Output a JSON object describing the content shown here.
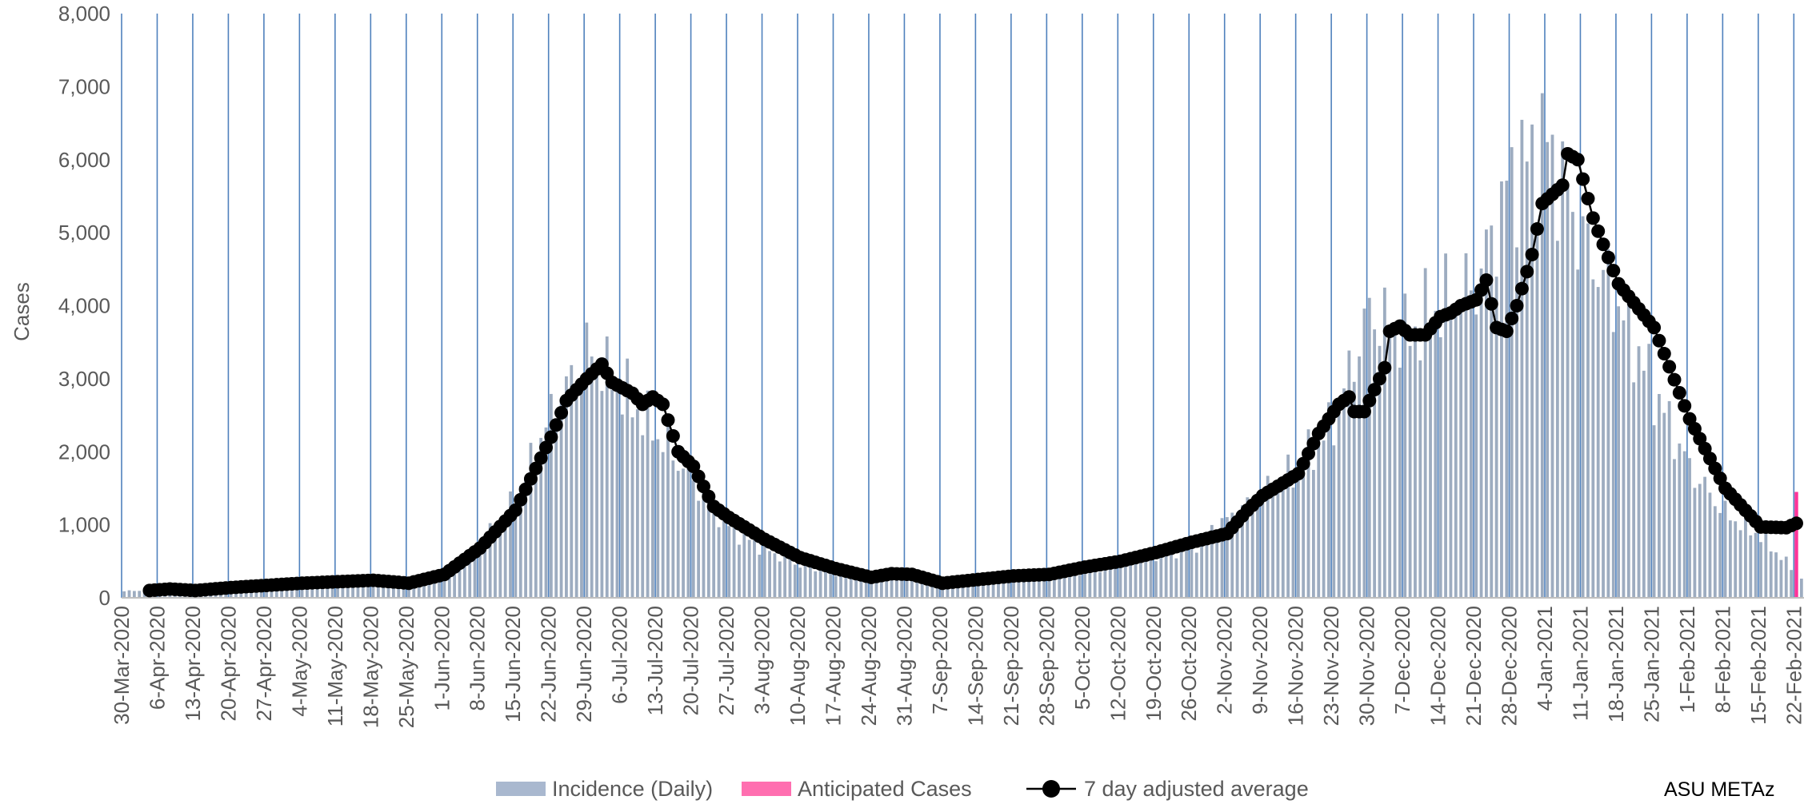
{
  "chart_data": {
    "type": "bar+line",
    "ylabel": "Cases",
    "ylim": [
      0,
      8000
    ],
    "ytick_values": [
      0,
      1000,
      2000,
      3000,
      4000,
      5000,
      6000,
      7000,
      8000
    ],
    "ytick_labels": [
      "0",
      "1,000",
      "2,000",
      "3,000",
      "4,000",
      "5,000",
      "6,000",
      "7,000",
      "8,000"
    ],
    "x_start": "2020-03-30",
    "x_end": "2021-02-23",
    "xtick_labels": [
      "30-Mar-2020",
      "6-Apr-2020",
      "13-Apr-2020",
      "20-Apr-2020",
      "27-Apr-2020",
      "4-May-2020",
      "11-May-2020",
      "18-May-2020",
      "25-May-2020",
      "1-Jun-2020",
      "8-Jun-2020",
      "15-Jun-2020",
      "22-Jun-2020",
      "29-Jun-2020",
      "6-Jul-2020",
      "13-Jul-2020",
      "20-Jul-2020",
      "27-Jul-2020",
      "3-Aug-2020",
      "10-Aug-2020",
      "17-Aug-2020",
      "24-Aug-2020",
      "31-Aug-2020",
      "7-Sep-2020",
      "14-Sep-2020",
      "21-Sep-2020",
      "28-Sep-2020",
      "5-Oct-2020",
      "12-Oct-2020",
      "19-Oct-2020",
      "26-Oct-2020",
      "2-Nov-2020",
      "9-Nov-2020",
      "16-Nov-2020",
      "23-Nov-2020",
      "30-Nov-2020",
      "7-Dec-2020",
      "14-Dec-2020",
      "21-Dec-2020",
      "28-Dec-2020",
      "4-Jan-2021",
      "11-Jan-2021",
      "18-Jan-2021",
      "25-Jan-2021",
      "1-Feb-2021",
      "8-Feb-2021",
      "15-Feb-2021",
      "22-Feb-2021"
    ],
    "grid": "vertical gridlines at weekly ticks",
    "colors": {
      "incidence": "#8497b0",
      "anticipated": "#ff3399",
      "average": "#000000",
      "gridline": "#4f81bd",
      "axis": "#bfbfbf",
      "text": "#595959"
    },
    "series": [
      {
        "name": "Incidence (Daily)",
        "kind": "bar",
        "note": "daily values between the anchor dates are interpolated",
        "anchors": [
          [
            "2020-03-30",
            100
          ],
          [
            "2020-04-06",
            130
          ],
          [
            "2020-04-20",
            150
          ],
          [
            "2020-05-04",
            200
          ],
          [
            "2020-05-18",
            240
          ],
          [
            "2020-05-25",
            200
          ],
          [
            "2020-06-01",
            350
          ],
          [
            "2020-06-08",
            800
          ],
          [
            "2020-06-15",
            1500
          ],
          [
            "2020-06-22",
            2800
          ],
          [
            "2020-06-29",
            3800
          ],
          [
            "2020-07-06",
            3200
          ],
          [
            "2020-07-13",
            2500
          ],
          [
            "2020-07-20",
            1800
          ],
          [
            "2020-07-27",
            1100
          ],
          [
            "2020-08-03",
            750
          ],
          [
            "2020-08-10",
            500
          ],
          [
            "2020-08-17",
            400
          ],
          [
            "2020-08-24",
            320
          ],
          [
            "2020-08-31",
            330
          ],
          [
            "2020-09-07",
            230
          ],
          [
            "2020-09-14",
            280
          ],
          [
            "2020-09-21",
            320
          ],
          [
            "2020-09-28",
            350
          ],
          [
            "2020-10-05",
            420
          ],
          [
            "2020-10-12",
            520
          ],
          [
            "2020-10-19",
            650
          ],
          [
            "2020-10-26",
            800
          ],
          [
            "2020-11-02",
            1200
          ],
          [
            "2020-11-09",
            1600
          ],
          [
            "2020-11-16",
            2000
          ],
          [
            "2020-11-23",
            2700
          ],
          [
            "2020-11-30",
            4400
          ],
          [
            "2020-12-07",
            4000
          ],
          [
            "2020-12-14",
            4500
          ],
          [
            "2020-12-21",
            4800
          ],
          [
            "2020-12-28",
            6500
          ],
          [
            "2021-01-04",
            7000
          ],
          [
            "2021-01-11",
            5500
          ],
          [
            "2021-01-18",
            4500
          ],
          [
            "2021-01-25",
            3200
          ],
          [
            "2021-02-01",
            2000
          ],
          [
            "2021-02-08",
            1300
          ],
          [
            "2021-02-15",
            950
          ],
          [
            "2021-02-23",
            300
          ]
        ]
      },
      {
        "name": "Anticipated Cases",
        "kind": "bar",
        "points": [
          [
            "2021-02-22",
            1450
          ]
        ]
      },
      {
        "name": "7 day adjusted average",
        "kind": "line-markers",
        "note": "daily values between the anchor dates are interpolated",
        "anchors": [
          [
            "2020-04-04",
            100
          ],
          [
            "2020-04-08",
            120
          ],
          [
            "2020-04-13",
            100
          ],
          [
            "2020-04-20",
            140
          ],
          [
            "2020-04-27",
            170
          ],
          [
            "2020-05-04",
            200
          ],
          [
            "2020-05-11",
            220
          ],
          [
            "2020-05-18",
            240
          ],
          [
            "2020-05-25",
            200
          ],
          [
            "2020-06-01",
            320
          ],
          [
            "2020-06-08",
            680
          ],
          [
            "2020-06-15",
            1200
          ],
          [
            "2020-06-22",
            2200
          ],
          [
            "2020-06-25",
            2700
          ],
          [
            "2020-06-29",
            3000
          ],
          [
            "2020-07-02",
            3200
          ],
          [
            "2020-07-04",
            2950
          ],
          [
            "2020-07-08",
            2800
          ],
          [
            "2020-07-10",
            2650
          ],
          [
            "2020-07-12",
            2750
          ],
          [
            "2020-07-14",
            2650
          ],
          [
            "2020-07-17",
            2000
          ],
          [
            "2020-07-20",
            1800
          ],
          [
            "2020-07-24",
            1250
          ],
          [
            "2020-07-27",
            1100
          ],
          [
            "2020-08-03",
            800
          ],
          [
            "2020-08-10",
            550
          ],
          [
            "2020-08-17",
            400
          ],
          [
            "2020-08-24",
            280
          ],
          [
            "2020-08-28",
            330
          ],
          [
            "2020-09-01",
            320
          ],
          [
            "2020-09-07",
            200
          ],
          [
            "2020-09-14",
            250
          ],
          [
            "2020-09-21",
            300
          ],
          [
            "2020-09-28",
            320
          ],
          [
            "2020-10-05",
            420
          ],
          [
            "2020-10-12",
            500
          ],
          [
            "2020-10-19",
            620
          ],
          [
            "2020-10-26",
            760
          ],
          [
            "2020-11-02",
            880
          ],
          [
            "2020-11-06",
            1200
          ],
          [
            "2020-11-09",
            1400
          ],
          [
            "2020-11-16",
            1700
          ],
          [
            "2020-11-20",
            2250
          ],
          [
            "2020-11-24",
            2650
          ],
          [
            "2020-11-26",
            2750
          ],
          [
            "2020-11-27",
            2550
          ],
          [
            "2020-11-29",
            2550
          ],
          [
            "2020-12-01",
            2850
          ],
          [
            "2020-12-03",
            3150
          ],
          [
            "2020-12-04",
            3650
          ],
          [
            "2020-12-06",
            3720
          ],
          [
            "2020-12-08",
            3600
          ],
          [
            "2020-12-11",
            3600
          ],
          [
            "2020-12-14",
            3850
          ],
          [
            "2020-12-16",
            3900
          ],
          [
            "2020-12-18",
            4000
          ],
          [
            "2020-12-21",
            4080
          ],
          [
            "2020-12-23",
            4350
          ],
          [
            "2020-12-25",
            3700
          ],
          [
            "2020-12-27",
            3650
          ],
          [
            "2020-12-29",
            4000
          ],
          [
            "2021-01-01",
            4700
          ],
          [
            "2021-01-03",
            5400
          ],
          [
            "2021-01-07",
            5650
          ],
          [
            "2021-01-08",
            6080
          ],
          [
            "2021-01-10",
            6000
          ],
          [
            "2021-01-13",
            5200
          ],
          [
            "2021-01-18",
            4300
          ],
          [
            "2021-01-25",
            3700
          ],
          [
            "2021-02-01",
            2450
          ],
          [
            "2021-02-08",
            1500
          ],
          [
            "2021-02-15",
            970
          ],
          [
            "2021-02-20",
            960
          ],
          [
            "2021-02-22",
            1020
          ]
        ]
      }
    ],
    "legend": {
      "position": "bottom",
      "items": [
        "Incidence (Daily)",
        "Anticipated Cases",
        "7 day adjusted average"
      ]
    }
  },
  "credit": "ASU METAz"
}
